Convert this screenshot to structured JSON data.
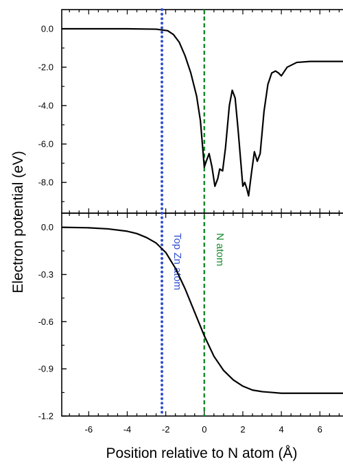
{
  "chart_data": {
    "type": "line",
    "ylabel": "Electron potential (eV)",
    "xlabel": "Position relative to N atom (Å)",
    "x_ticks": [
      -6,
      -4,
      -2,
      0,
      2,
      4,
      6
    ],
    "xlim": [
      -7.4,
      7.2
    ],
    "markers": [
      {
        "label": "Top Zn atom",
        "x": -2.2,
        "style": "dotted",
        "color": "#2f4fd0"
      },
      {
        "label": "N atom",
        "x": 0.0,
        "style": "dashed",
        "color": "#1a8a2e"
      }
    ],
    "panels": [
      {
        "id": "top",
        "ylim": [
          -9.6,
          1.0
        ],
        "y_ticks": [
          "0.0",
          "-2.0",
          "-4.0",
          "-6.0",
          "-8.0"
        ],
        "y_tick_values": [
          0,
          -2,
          -4,
          -6,
          -8
        ],
        "series": [
          {
            "color": "#000000",
            "x": [
              -7.4,
              -4.0,
              -2.5,
              -1.9,
              -1.6,
              -1.3,
              -1.0,
              -0.7,
              -0.4,
              -0.2,
              -0.1,
              0.0,
              0.1,
              0.25,
              0.4,
              0.55,
              0.7,
              0.8,
              0.95,
              1.1,
              1.3,
              1.45,
              1.6,
              1.75,
              1.9,
              2.0,
              2.1,
              2.2,
              2.3,
              2.45,
              2.6,
              2.75,
              2.9,
              3.1,
              3.3,
              3.5,
              3.7,
              3.85,
              4.0,
              4.3,
              4.8,
              5.5,
              7.2
            ],
            "y": [
              0.0,
              0.0,
              -0.02,
              -0.1,
              -0.3,
              -0.7,
              -1.4,
              -2.3,
              -3.5,
              -4.8,
              -6.0,
              -7.2,
              -6.9,
              -6.5,
              -7.2,
              -8.2,
              -7.8,
              -7.3,
              -7.4,
              -6.2,
              -4.0,
              -3.2,
              -3.6,
              -5.2,
              -7.0,
              -8.2,
              -8.0,
              -8.3,
              -8.7,
              -7.5,
              -6.4,
              -6.9,
              -6.5,
              -4.3,
              -2.9,
              -2.3,
              -2.2,
              -2.3,
              -2.45,
              -2.0,
              -1.75,
              -1.7,
              -1.7
            ]
          }
        ]
      },
      {
        "id": "bottom",
        "ylim": [
          -1.2,
          0.09
        ],
        "y_ticks": [
          "0.0",
          "-0.3",
          "-0.6",
          "-0.9",
          "-1.2"
        ],
        "y_tick_values": [
          0,
          -0.3,
          -0.6,
          -0.9,
          -1.2
        ],
        "series": [
          {
            "color": "#000000",
            "x": [
              -7.4,
              -6.0,
              -5.0,
              -4.0,
              -3.5,
              -3.0,
              -2.5,
              -2.0,
              -1.5,
              -1.0,
              -0.5,
              0.0,
              0.5,
              1.0,
              1.5,
              2.0,
              2.5,
              3.0,
              3.5,
              4.0,
              5.0,
              6.0,
              7.2
            ],
            "y": [
              0.0,
              -0.003,
              -0.01,
              -0.025,
              -0.04,
              -0.065,
              -0.1,
              -0.16,
              -0.26,
              -0.39,
              -0.54,
              -0.69,
              -0.82,
              -0.91,
              -0.97,
              -1.01,
              -1.035,
              -1.045,
              -1.05,
              -1.055,
              -1.055,
              -1.055,
              -1.055
            ]
          }
        ]
      }
    ]
  }
}
